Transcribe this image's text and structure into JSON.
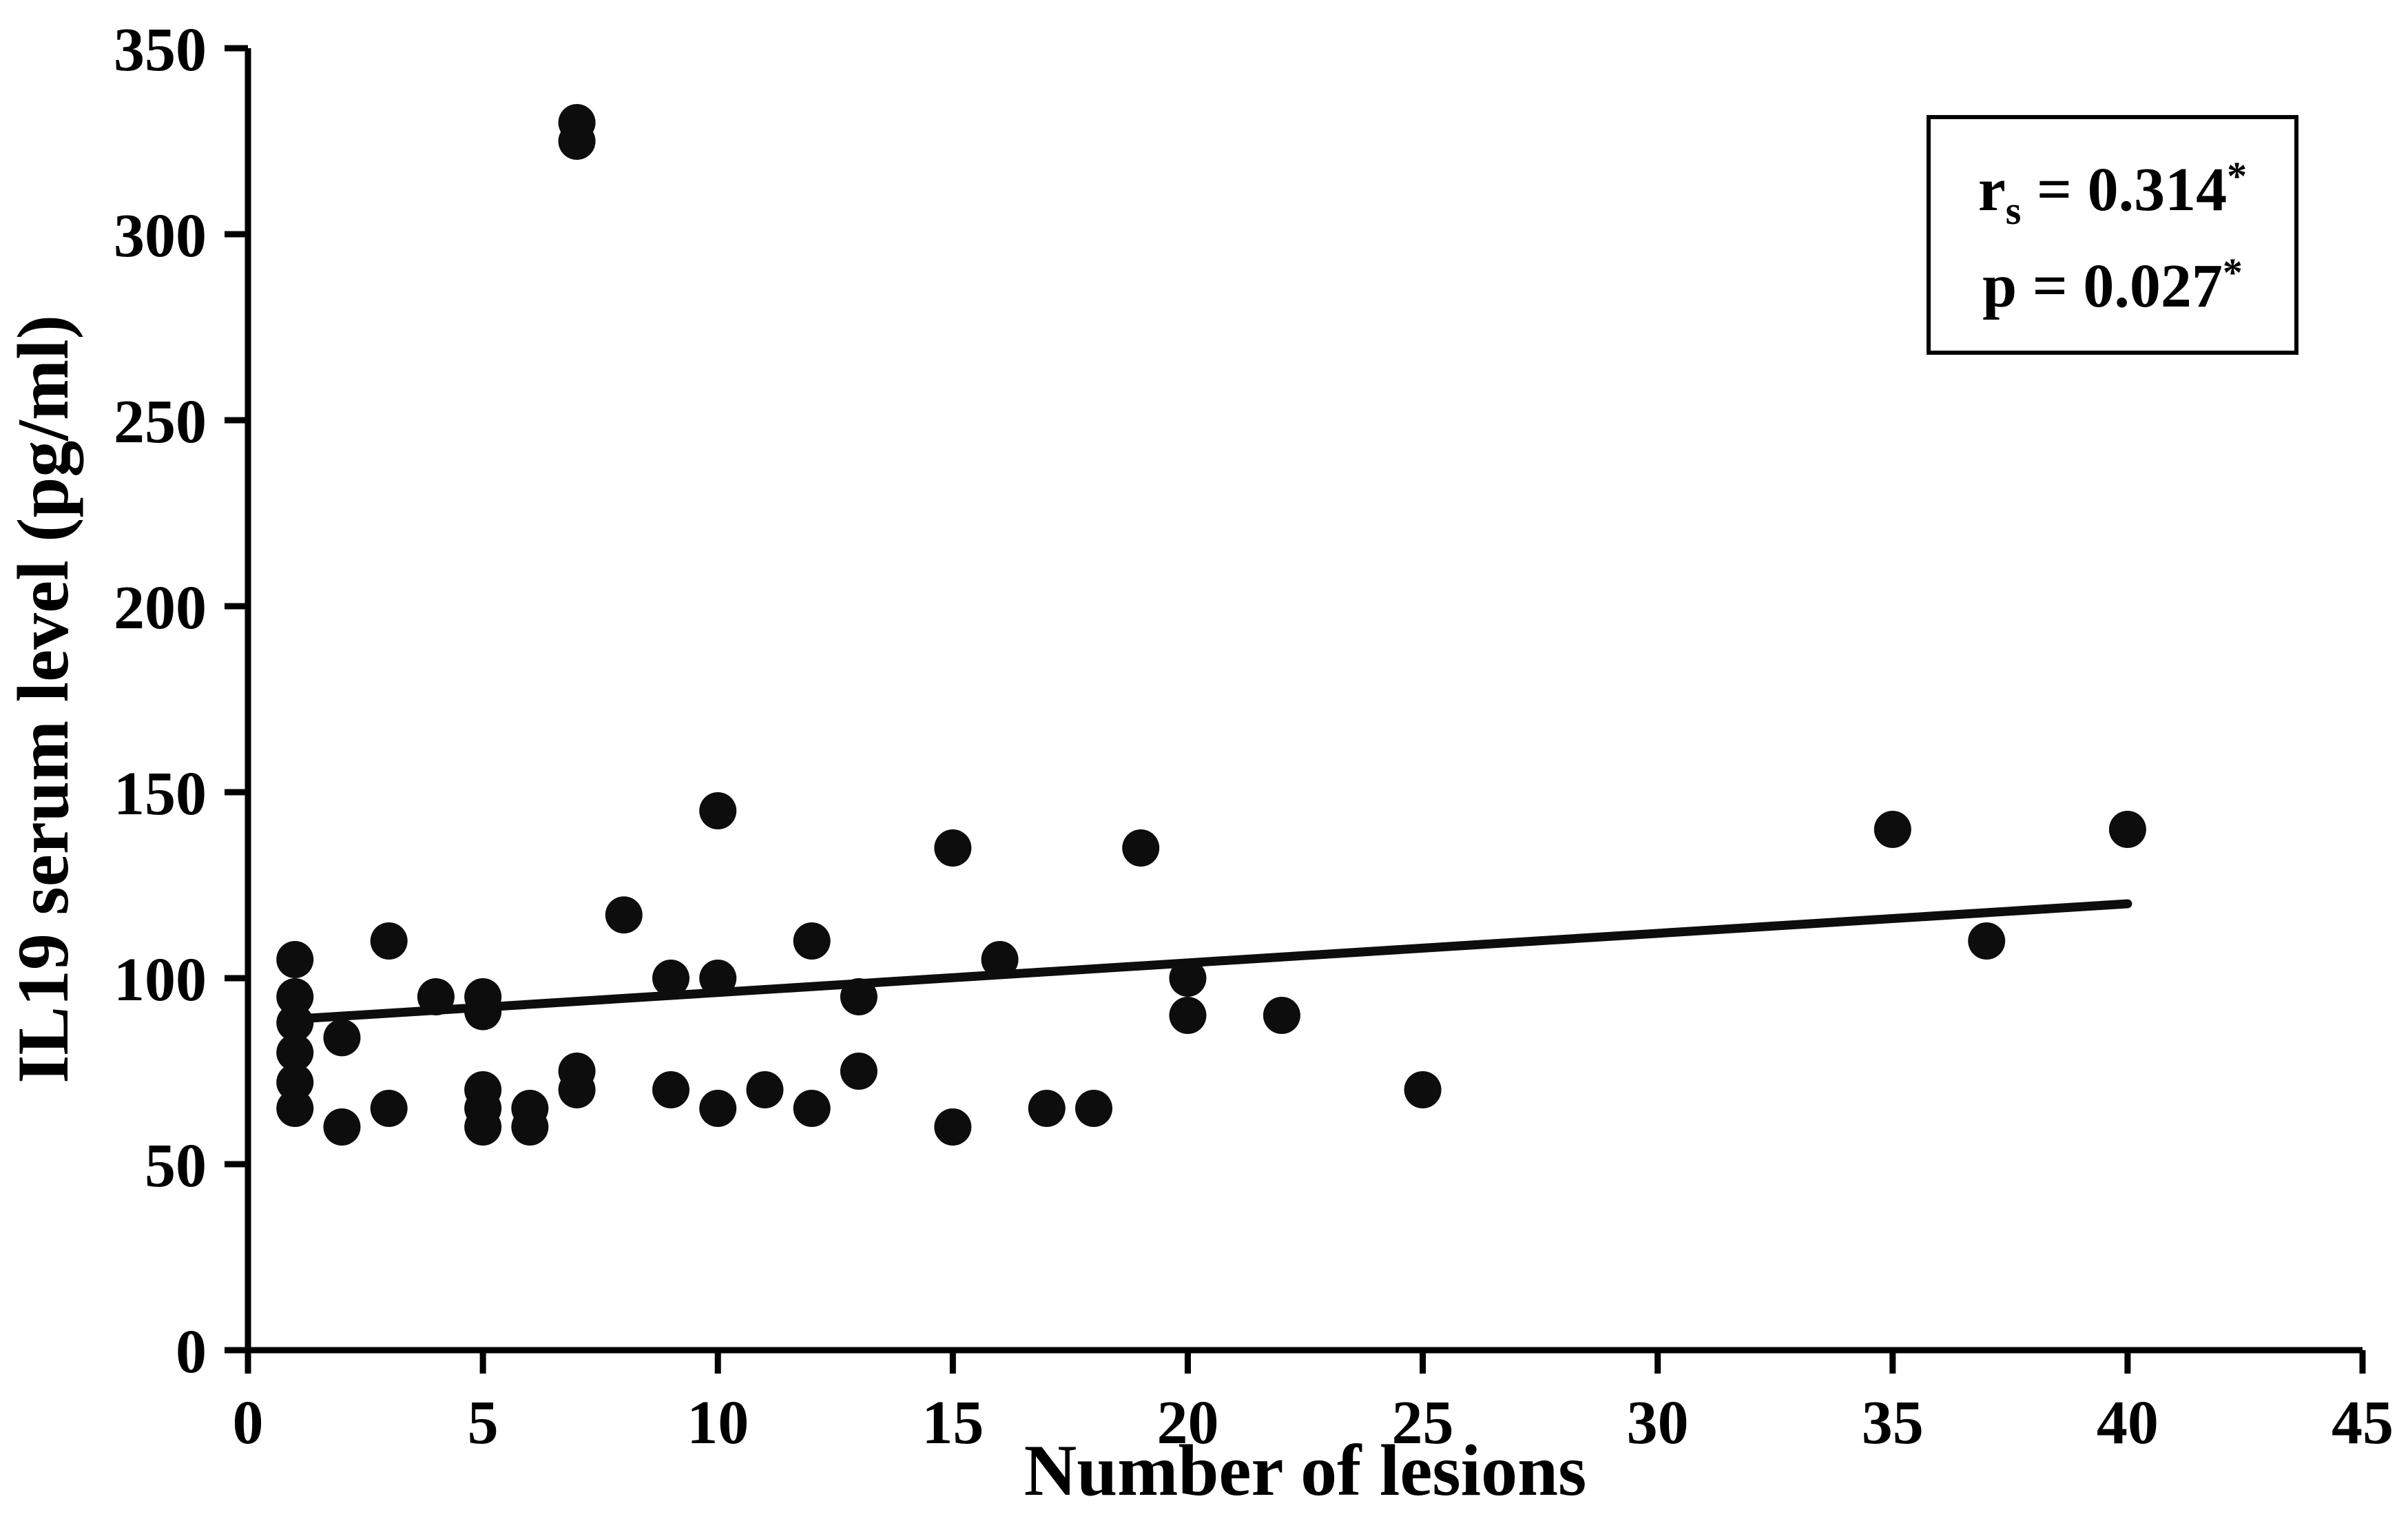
{
  "chart_data": {
    "type": "scatter",
    "title": "",
    "xlabel": "Number of lesions",
    "ylabel": "IL19 serum level (pg/ml)",
    "xlim": [
      0,
      45
    ],
    "ylim": [
      0,
      350
    ],
    "xticks": [
      0,
      5,
      10,
      15,
      20,
      25,
      30,
      35,
      40,
      45
    ],
    "yticks": [
      0,
      50,
      100,
      150,
      200,
      250,
      300,
      350
    ],
    "grid": false,
    "legend": "none",
    "points": [
      [
        1,
        105
      ],
      [
        1,
        95
      ],
      [
        1,
        88
      ],
      [
        1,
        80
      ],
      [
        1,
        72
      ],
      [
        1,
        65
      ],
      [
        2,
        84
      ],
      [
        2,
        60
      ],
      [
        3,
        110
      ],
      [
        3,
        65
      ],
      [
        4,
        95
      ],
      [
        5,
        95
      ],
      [
        5,
        91
      ],
      [
        5,
        70
      ],
      [
        5,
        65
      ],
      [
        5,
        60
      ],
      [
        6,
        65
      ],
      [
        6,
        60
      ],
      [
        7,
        330
      ],
      [
        7,
        325
      ],
      [
        7,
        75
      ],
      [
        7,
        70
      ],
      [
        8,
        117
      ],
      [
        9,
        100
      ],
      [
        9,
        70
      ],
      [
        10,
        145
      ],
      [
        10,
        100
      ],
      [
        10,
        65
      ],
      [
        11,
        70
      ],
      [
        12,
        110
      ],
      [
        12,
        65
      ],
      [
        13,
        95
      ],
      [
        13,
        75
      ],
      [
        15,
        135
      ],
      [
        15,
        60
      ],
      [
        16,
        105
      ],
      [
        17,
        65
      ],
      [
        18,
        65
      ],
      [
        19,
        135
      ],
      [
        20,
        100
      ],
      [
        20,
        90
      ],
      [
        22,
        90
      ],
      [
        25,
        70
      ],
      [
        35,
        140
      ],
      [
        37,
        110
      ],
      [
        40,
        140
      ]
    ],
    "trend_line": {
      "x1": 1,
      "y1": 89,
      "x2": 40,
      "y2": 120
    },
    "annotation": {
      "line1_base": "r",
      "line1_sub": "s",
      "line1_mid": " = 0.314",
      "line1_sup": "*",
      "line2_base": "p = 0.027",
      "line2_sup": "*"
    },
    "colors": {
      "points": "#0d0d0d",
      "line": "#0d0d0d",
      "axis": "#000000",
      "background": "#ffffff"
    }
  }
}
